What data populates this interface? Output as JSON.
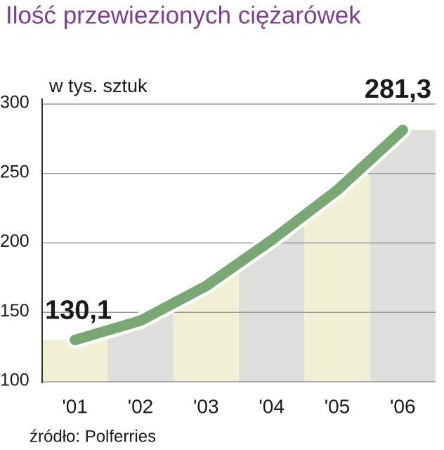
{
  "chart_data": {
    "type": "line",
    "title": "Ilość przewiezionych ciężarówek",
    "unit_label": "w tys. sztuk",
    "source": "źródło:  Polferries",
    "categories": [
      "'01",
      "'02",
      "'03",
      "'04",
      "'05",
      "'06"
    ],
    "values": [
      130.1,
      144,
      169,
      202,
      238,
      281.3
    ],
    "value_labels": [
      "130,1",
      null,
      null,
      null,
      null,
      "281,3"
    ],
    "color": "#7aa874",
    "title_color": "#7b3f8c",
    "band_colors": [
      "#f2f0d4",
      "#dededa"
    ],
    "ylim": [
      100,
      300
    ],
    "yticks": [
      100,
      150,
      200,
      250,
      300
    ],
    "grid": true
  }
}
